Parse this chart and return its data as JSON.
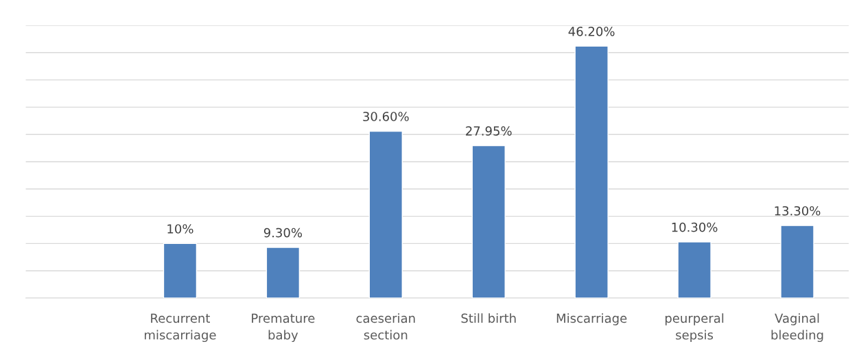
{
  "chart_data": {
    "type": "bar",
    "categories": [
      null,
      "Recurrent\nmiscarriage",
      "Premature\nbaby",
      "caeserian\nsection",
      "Still birth",
      "Miscarriage",
      "peurperal\nsepsis",
      "Vaginal\nbleeding"
    ],
    "values": [
      null,
      10,
      9.3,
      30.6,
      27.95,
      46.2,
      10.3,
      13.3
    ],
    "value_labels": [
      null,
      "10%",
      "9.30%",
      "30.60%",
      "27.95%",
      "46.20%",
      "10.30%",
      "13.30%"
    ],
    "color": "#4f81bd",
    "ylim": [
      0,
      50
    ],
    "yticks": [
      {
        "value": 0,
        "label": null
      },
      {
        "value": 5,
        "label": null
      },
      {
        "value": 10,
        "label": null
      },
      {
        "value": 15,
        "label": null
      },
      {
        "value": 20,
        "label": null
      },
      {
        "value": 25,
        "label": null
      },
      {
        "value": 30,
        "label": null
      },
      {
        "value": 35,
        "label": null
      },
      {
        "value": 40,
        "label": null
      },
      {
        "value": 45,
        "label": null
      },
      {
        "value": 50,
        "label": null
      }
    ],
    "grid": "y",
    "tick_labels": "x",
    "legend": false
  }
}
